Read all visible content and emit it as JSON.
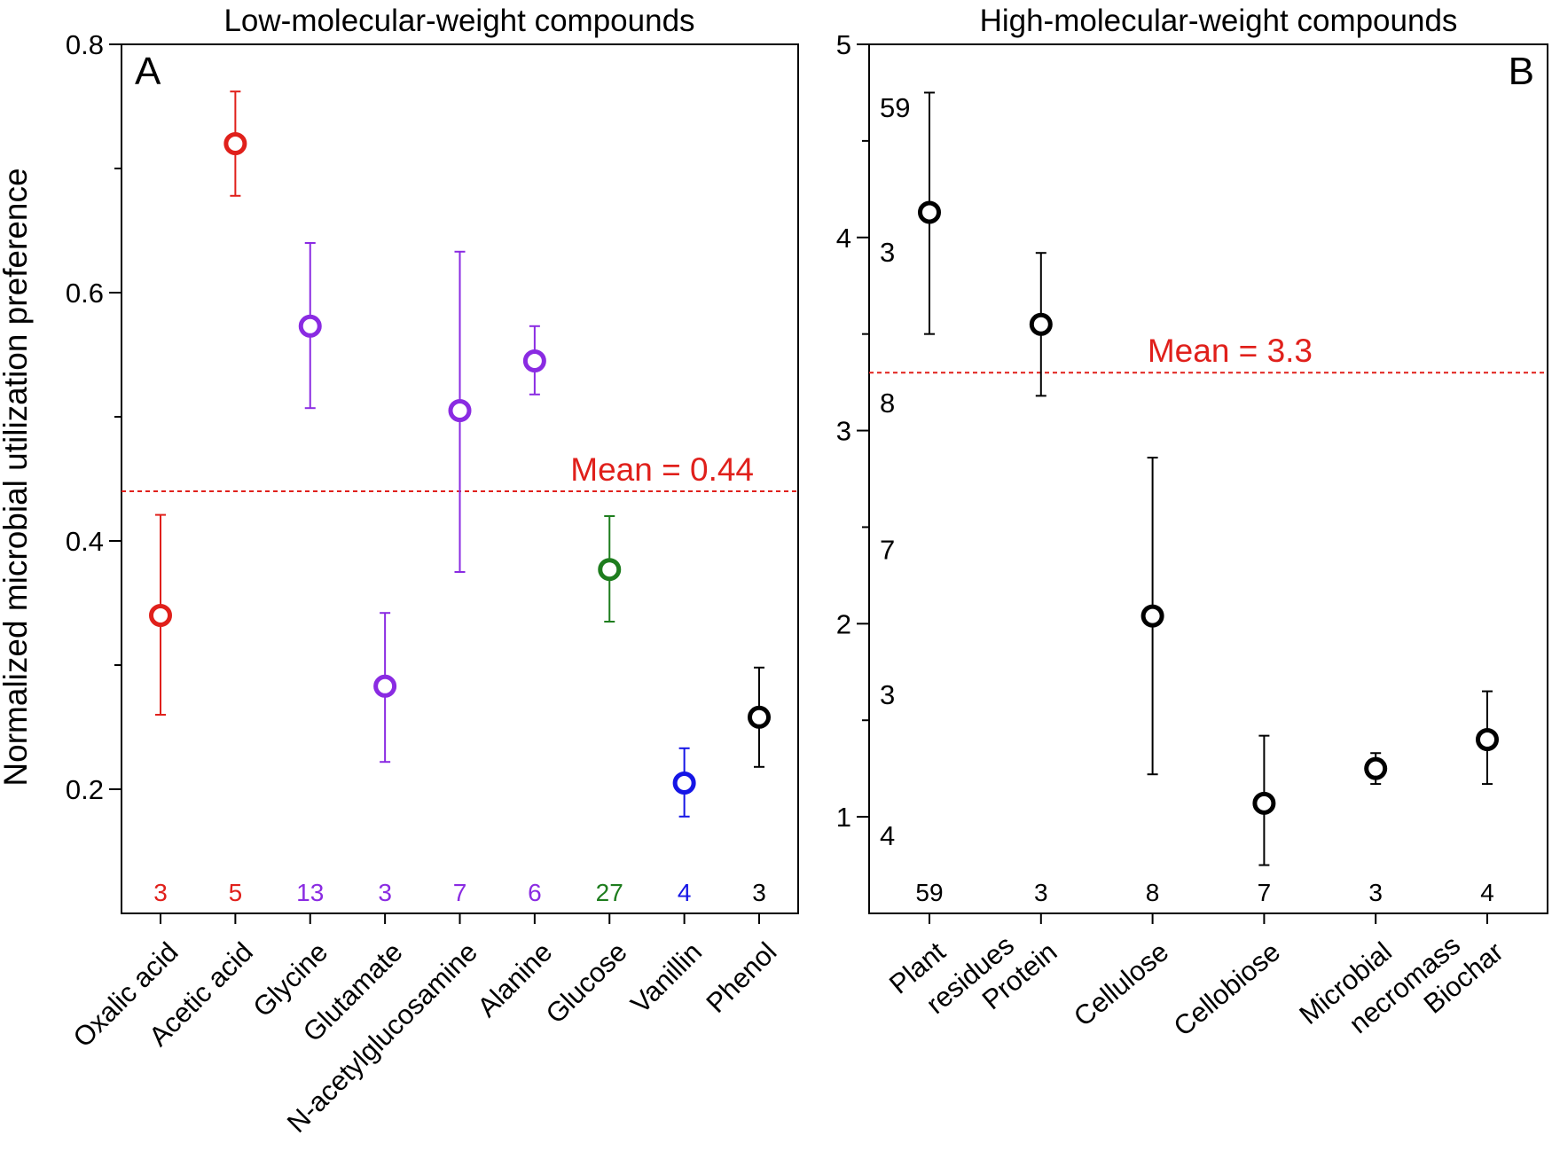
{
  "colors": {
    "red": "#e0201b",
    "purple": "#8a2be2",
    "green": "#1e7d1e",
    "blue": "#1515e6",
    "black": "#000000"
  },
  "ylabel": "Normalized microbial utilization preference",
  "chart_data": [
    {
      "type": "scatter",
      "panel": "A",
      "title": "Low-molecular-weight compounds",
      "ylim": [
        0.1,
        0.8
      ],
      "yticks": [
        0.2,
        0.4,
        0.6,
        0.8
      ],
      "yticks_labels": [
        "0.2",
        "0.4",
        "0.6",
        "0.8"
      ],
      "minor_yticks": [
        0.3,
        0.5,
        0.7
      ],
      "mean": 0.44,
      "mean_label": "Mean = 0.44",
      "categories": [
        "Oxalic acid",
        "Acetic acid",
        "Glycine",
        "Glutamate",
        "N-acetylglucosamine",
        "Alanine",
        "Glucose",
        "Vanillin",
        "Phenol"
      ],
      "values": [
        0.34,
        0.72,
        0.573,
        0.283,
        0.505,
        0.545,
        0.377,
        0.205,
        0.258
      ],
      "err_low": [
        0.26,
        0.678,
        0.507,
        0.222,
        0.375,
        0.518,
        0.335,
        0.178,
        0.218
      ],
      "err_high": [
        0.421,
        0.762,
        0.64,
        0.342,
        0.633,
        0.573,
        0.42,
        0.233,
        0.298
      ],
      "n": [
        "3",
        "5",
        "13",
        "3",
        "7",
        "6",
        "27",
        "4",
        "3"
      ],
      "point_colors": [
        "red",
        "red",
        "purple",
        "purple",
        "purple",
        "purple",
        "green",
        "blue",
        "black"
      ]
    },
    {
      "type": "scatter",
      "panel": "B",
      "title": "High-molecular-weight compounds",
      "ylim": [
        0.5,
        5
      ],
      "yticks": [
        1,
        2,
        3,
        4,
        5
      ],
      "yticks_labels": [
        "1",
        "2",
        "3",
        "4",
        "5"
      ],
      "minor_yticks": [
        1.5,
        2.5,
        3.5,
        4.5
      ],
      "mean": 3.3,
      "mean_label": "Mean = 3.3",
      "categories": [
        "Plant\nresidues",
        "Protein",
        "Cellulose",
        "Cellobiose",
        "Microbial\nnecromass",
        "Biochar"
      ],
      "values": [
        4.13,
        3.55,
        2.04,
        1.07,
        1.25,
        1.4
      ],
      "err_low": [
        3.5,
        3.18,
        1.22,
        0.75,
        1.17,
        1.17
      ],
      "err_high": [
        4.75,
        3.92,
        2.86,
        1.42,
        1.33,
        1.65
      ],
      "n": [
        "59",
        "3",
        "8",
        "7",
        "3",
        "4"
      ],
      "point_colors": [
        "black",
        "black",
        "black",
        "black",
        "black",
        "black"
      ],
      "left_annotations": [
        {
          "text": "59",
          "y": 4.67
        },
        {
          "text": "3",
          "y": 3.92
        },
        {
          "text": "8",
          "y": 3.14
        },
        {
          "text": "7",
          "y": 2.38
        },
        {
          "text": "3",
          "y": 1.63
        },
        {
          "text": "4",
          "y": 0.9
        }
      ]
    }
  ]
}
